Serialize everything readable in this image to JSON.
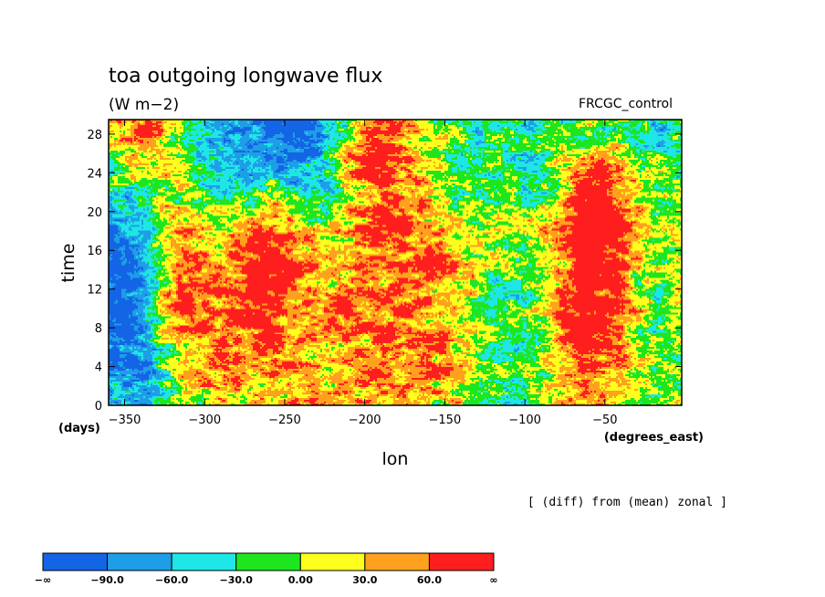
{
  "chart_data": {
    "type": "heatmap",
    "title": "toa outgoing longwave flux",
    "units": "(W m−2)",
    "dataset_label": "FRCGC_control",
    "xlabel": "lon",
    "ylabel": "time",
    "xunits": "(degrees_east)",
    "yunits": "(days)",
    "note": "[ (diff) from (mean) zonal ]",
    "xlim": [
      -360,
      -2
    ],
    "ylim": [
      0,
      29.5
    ],
    "xticks": [
      -350,
      -300,
      -250,
      -200,
      -150,
      -100,
      -50
    ],
    "yticks": [
      0,
      4,
      8,
      12,
      16,
      20,
      24,
      28
    ],
    "levels": [
      -90,
      -60,
      -30,
      0,
      30,
      60
    ],
    "level_labels": [
      "−∞",
      "−90.0",
      "−60.0",
      "−30.0",
      "0.00",
      "30.0",
      "60.0",
      "∞"
    ],
    "colors": [
      "#1464e6",
      "#1e9ee6",
      "#1ee6e6",
      "#1ee61e",
      "#ffff1e",
      "#ffa01e",
      "#ff1e1e"
    ],
    "features": [
      {
        "kind": "convective-band",
        "sign": "negative",
        "from": [
          -330,
          1.5
        ],
        "to": [
          -2,
          27.5
        ],
        "width_deg": 34
      },
      {
        "kind": "convective-band",
        "sign": "negative",
        "from": [
          -360,
          16
        ],
        "to": [
          -240,
          29.5
        ],
        "width_deg": 30
      },
      {
        "kind": "dry-band",
        "sign": "positive",
        "from": [
          -310,
          9.5
        ],
        "to": [
          -2,
          23.5
        ],
        "width_deg": 26
      },
      {
        "kind": "dry-band",
        "sign": "positive",
        "from": [
          -300,
          0.5
        ],
        "to": [
          -160,
          7
        ],
        "width_deg": 30
      },
      {
        "kind": "dry-patch",
        "sign": "positive",
        "center": [
          -190,
          26.5
        ],
        "radius_deg": 30
      },
      {
        "kind": "dry-patch",
        "sign": "positive",
        "center": [
          -310,
          19
        ],
        "radius_deg": 28
      },
      {
        "kind": "dry-patch",
        "sign": "positive",
        "center": [
          -340,
          28
        ],
        "radius_deg": 22
      },
      {
        "kind": "dry-patch",
        "sign": "positive",
        "center": [
          -60,
          8
        ],
        "radius_deg": 28
      },
      {
        "kind": "dry-patch",
        "sign": "positive",
        "center": [
          -260,
          17
        ],
        "radius_deg": 22
      },
      {
        "kind": "dry-patch",
        "sign": "positive",
        "center": [
          -55,
          21
        ],
        "radius_deg": 22
      }
    ]
  }
}
